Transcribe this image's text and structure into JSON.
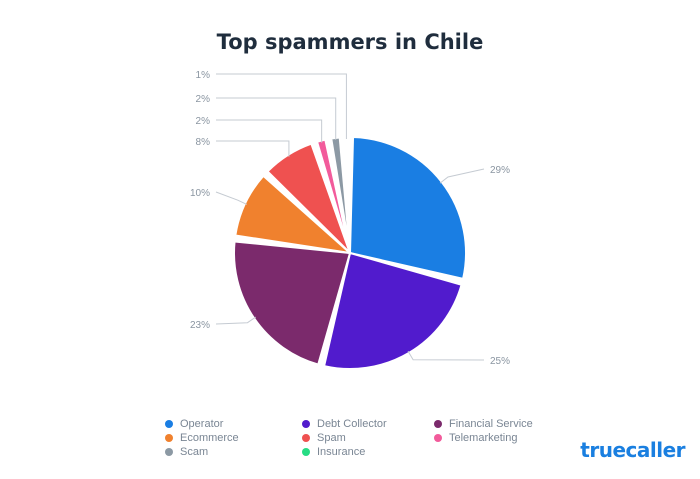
{
  "title": "Top spammers in Chile",
  "brand": "truecaller",
  "chart_data": {
    "type": "pie",
    "title": "Top spammers in Chile",
    "legend_position": "bottom",
    "slices": [
      {
        "name": "Operator",
        "value": 29,
        "label": "29%",
        "color": "#1a7ee3"
      },
      {
        "name": "Debt Collector",
        "value": 25,
        "label": "25%",
        "color": "#511bcd"
      },
      {
        "name": "Financial Service",
        "value": 23,
        "label": "23%",
        "color": "#7b2a6c"
      },
      {
        "name": "Ecommerce",
        "value": 10,
        "label": "10%",
        "color": "#f0812e"
      },
      {
        "name": "Spam",
        "value": 8,
        "label": "8%",
        "color": "#ef5150"
      },
      {
        "name": "Telemarketing",
        "value": 2,
        "label": "2%",
        "color": "#f25b9b"
      },
      {
        "name": "Scam",
        "value": 2,
        "label": "2%",
        "color": "#8c99a4"
      },
      {
        "name": "Insurance",
        "value": 1,
        "label": "1%",
        "color": "#27dc84"
      }
    ]
  }
}
